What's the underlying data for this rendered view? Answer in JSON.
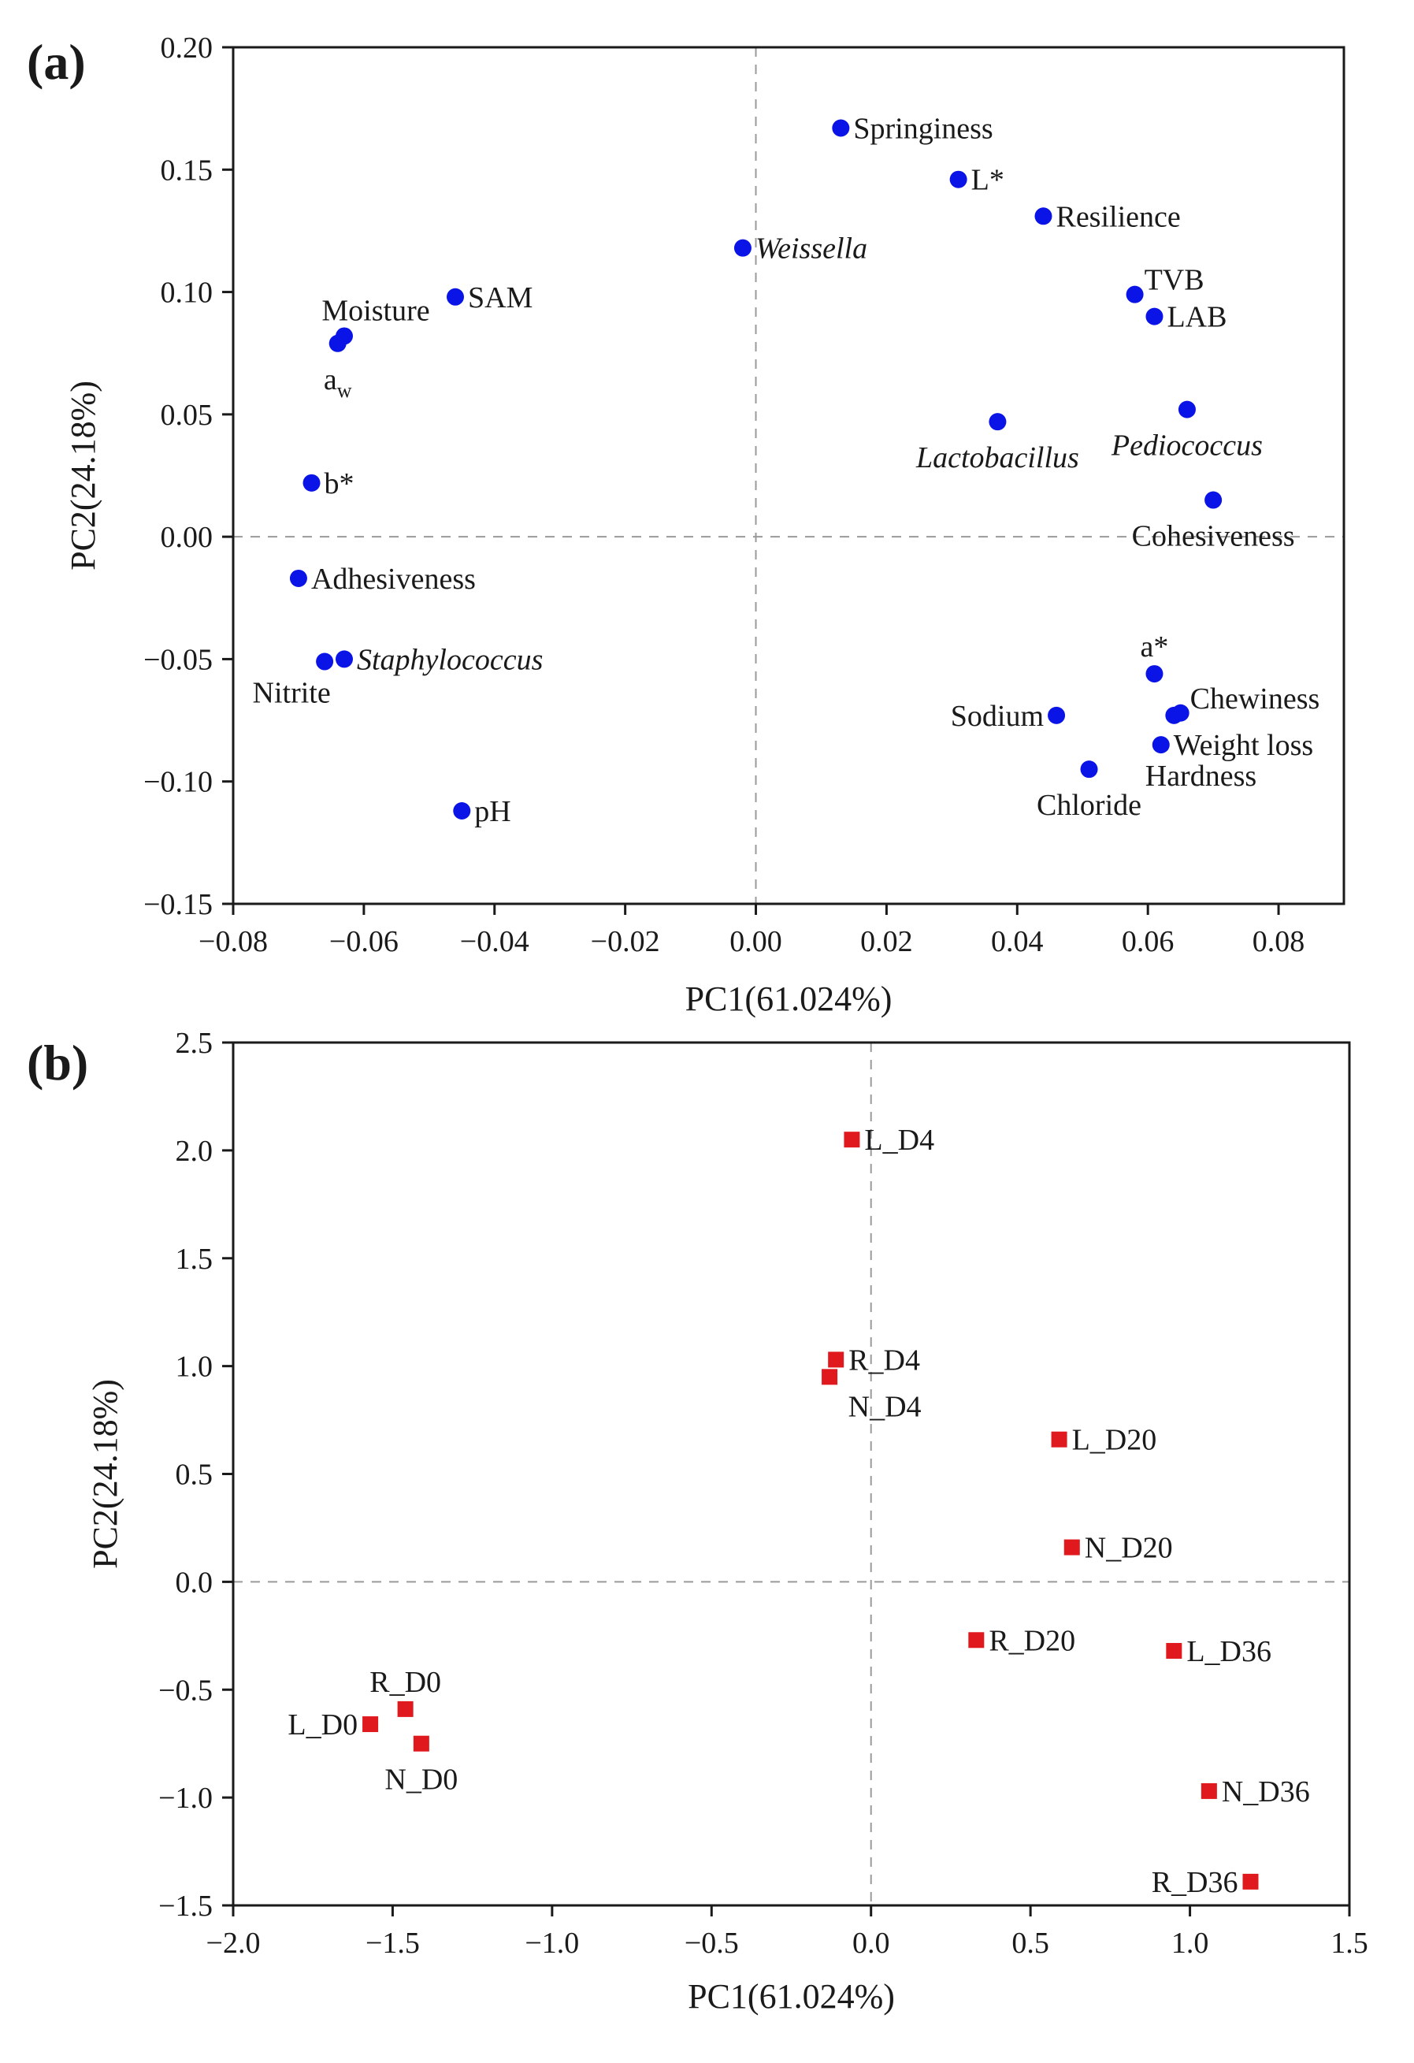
{
  "figure": {
    "panels": [
      "(a)",
      "(b)"
    ]
  },
  "chart_data": [
    {
      "type": "scatter",
      "panel": "(a)",
      "title": "",
      "xlabel": "PC1(61.024%)",
      "ylabel": "PC2(24.18%)",
      "xlim": [
        -0.08,
        0.09
      ],
      "ylim": [
        -0.15,
        0.2
      ],
      "xticks": [
        -0.08,
        -0.06,
        -0.04,
        -0.02,
        0.0,
        0.02,
        0.04,
        0.06,
        0.08
      ],
      "yticks": [
        -0.15,
        -0.1,
        -0.05,
        0.0,
        0.05,
        0.1,
        0.15,
        0.2
      ],
      "xtick_labels": [
        "−0.08",
        "−0.06",
        "−0.04",
        "−0.02",
        "0.00",
        "0.02",
        "0.04",
        "0.06",
        "0.08"
      ],
      "ytick_labels": [
        "−0.15",
        "−0.10",
        "−0.05",
        "0.00",
        "0.05",
        "0.10",
        "0.15",
        "0.20"
      ],
      "marker": "circle",
      "color": "#0a14e6",
      "reference_lines": {
        "x": 0,
        "y": 0,
        "style": "dashed"
      },
      "points": [
        {
          "label": "Springiness",
          "x": 0.013,
          "y": 0.167,
          "italic": false,
          "anchor": "right"
        },
        {
          "label": "L*",
          "x": 0.031,
          "y": 0.146,
          "italic": false,
          "anchor": "right"
        },
        {
          "label": "Resilience",
          "x": 0.044,
          "y": 0.131,
          "italic": false,
          "anchor": "right"
        },
        {
          "label": "Weissella",
          "x": -0.002,
          "y": 0.118,
          "italic": true,
          "anchor": "right"
        },
        {
          "label": "TVB",
          "x": 0.058,
          "y": 0.099,
          "italic": false,
          "anchor": "right-up"
        },
        {
          "label": "LAB",
          "x": 0.061,
          "y": 0.09,
          "italic": false,
          "anchor": "right"
        },
        {
          "label": "SAM",
          "x": -0.046,
          "y": 0.098,
          "italic": false,
          "anchor": "right"
        },
        {
          "label": "Moisture",
          "x": -0.063,
          "y": 0.082,
          "italic": false,
          "anchor": "above-left"
        },
        {
          "label": "a",
          "sub": "w",
          "x": -0.064,
          "y": 0.079,
          "italic": false,
          "anchor": "below"
        },
        {
          "label": "Pediococcus",
          "x": 0.066,
          "y": 0.052,
          "italic": true,
          "anchor": "below"
        },
        {
          "label": "Lactobacillus",
          "x": 0.037,
          "y": 0.047,
          "italic": true,
          "anchor": "below"
        },
        {
          "label": "b*",
          "x": -0.068,
          "y": 0.022,
          "italic": false,
          "anchor": "right"
        },
        {
          "label": "Cohesiveness",
          "x": 0.07,
          "y": 0.015,
          "italic": false,
          "anchor": "below"
        },
        {
          "label": "Adhesiveness",
          "x": -0.07,
          "y": -0.017,
          "italic": false,
          "anchor": "right"
        },
        {
          "label": "Staphylococcus",
          "x": -0.063,
          "y": -0.05,
          "italic": true,
          "anchor": "right"
        },
        {
          "label": "Nitrite",
          "x": -0.066,
          "y": -0.051,
          "italic": false,
          "anchor": "below-left"
        },
        {
          "label": "a*",
          "x": 0.061,
          "y": -0.056,
          "italic": false,
          "anchor": "above"
        },
        {
          "label": "Chewiness",
          "x": 0.065,
          "y": -0.072,
          "italic": false,
          "anchor": "right-up"
        },
        {
          "label": "Sodium",
          "x": 0.046,
          "y": -0.073,
          "italic": false,
          "anchor": "left"
        },
        {
          "label": "Weight loss",
          "x": 0.064,
          "y": -0.073,
          "italic": false,
          "anchor": "none"
        },
        {
          "label": "Hardness",
          "x": 0.062,
          "y": -0.085,
          "italic": false,
          "anchor": "right-down"
        },
        {
          "label": "Chloride",
          "x": 0.051,
          "y": -0.095,
          "italic": false,
          "anchor": "below"
        },
        {
          "label": "pH",
          "x": -0.045,
          "y": -0.112,
          "italic": false,
          "anchor": "right"
        }
      ],
      "extra_labels": [
        {
          "label": "Weight loss",
          "x": 0.062,
          "y": -0.085,
          "anchor": "right"
        }
      ]
    },
    {
      "type": "scatter",
      "panel": "(b)",
      "title": "",
      "xlabel": "PC1(61.024%)",
      "ylabel": "PC2(24.18%)",
      "xlim": [
        -2.0,
        1.5
      ],
      "ylim": [
        -1.5,
        2.5
      ],
      "xticks": [
        -2.0,
        -1.5,
        -1.0,
        -0.5,
        0.0,
        0.5,
        1.0,
        1.5
      ],
      "yticks": [
        -1.5,
        -1.0,
        -0.5,
        0.0,
        0.5,
        1.0,
        1.5,
        2.0,
        2.5
      ],
      "xtick_labels": [
        "−2.0",
        "−1.5",
        "−1.0",
        "−0.5",
        "0.0",
        "0.5",
        "1.0",
        "1.5"
      ],
      "ytick_labels": [
        "−1.5",
        "−1.0",
        "−0.5",
        "0.0",
        "0.5",
        "1.0",
        "1.5",
        "2.0",
        "2.5"
      ],
      "marker": "square",
      "color": "#e0191e",
      "reference_lines": {
        "x": 0,
        "y": 0,
        "style": "dashed"
      },
      "points": [
        {
          "label": "L_D4",
          "x": -0.06,
          "y": 2.05,
          "anchor": "right"
        },
        {
          "label": "R_D4",
          "x": -0.11,
          "y": 1.03,
          "anchor": "right"
        },
        {
          "label": "N_D4",
          "x": -0.13,
          "y": 0.95,
          "anchor": "below-right"
        },
        {
          "label": "L_D20",
          "x": 0.59,
          "y": 0.66,
          "anchor": "right"
        },
        {
          "label": "N_D20",
          "x": 0.63,
          "y": 0.16,
          "anchor": "right"
        },
        {
          "label": "R_D20",
          "x": 0.33,
          "y": -0.27,
          "anchor": "right"
        },
        {
          "label": "L_D36",
          "x": 0.95,
          "y": -0.32,
          "anchor": "right"
        },
        {
          "label": "N_D36",
          "x": 1.06,
          "y": -0.97,
          "anchor": "right"
        },
        {
          "label": "R_D36",
          "x": 1.19,
          "y": -1.39,
          "anchor": "left"
        },
        {
          "label": "R_D0",
          "x": -1.46,
          "y": -0.59,
          "anchor": "above"
        },
        {
          "label": "L_D0",
          "x": -1.57,
          "y": -0.66,
          "anchor": "left"
        },
        {
          "label": "N_D0",
          "x": -1.41,
          "y": -0.75,
          "anchor": "below"
        }
      ]
    }
  ]
}
